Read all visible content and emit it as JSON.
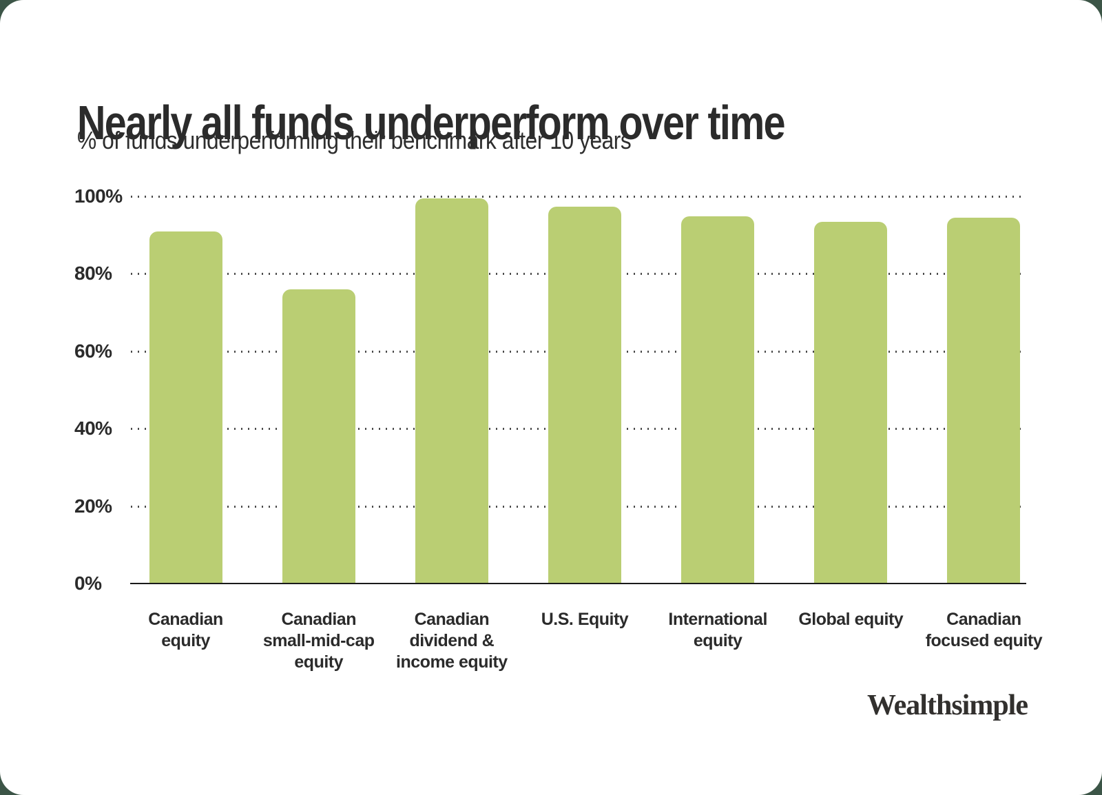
{
  "chart_data": {
    "type": "bar",
    "title": "Nearly all funds underperform over time",
    "subtitle": "% of funds underperforming their benchmark after 10 years",
    "categories": [
      "Canadian\nequity",
      "Canadian\nsmall-mid-cap\nequity",
      "Canadian\ndividend &\nincome equity",
      "U.S. Equity",
      "International\nequity",
      "Global equity",
      "Canadian\nfocused equity"
    ],
    "values": [
      91,
      76,
      99.5,
      97.3,
      94.8,
      93.5,
      94.5
    ],
    "xlabel": "",
    "ylabel": "",
    "ylim": [
      0,
      100
    ],
    "y_ticks": [
      {
        "label": "100%",
        "value": 100
      },
      {
        "label": "80%",
        "value": 80
      },
      {
        "label": "60%",
        "value": 60
      },
      {
        "label": "40%",
        "value": 40
      },
      {
        "label": "20%",
        "value": 20
      },
      {
        "label": "0%",
        "value": 0
      }
    ],
    "grid": "horizontal-dotted",
    "legend": "none",
    "bar_color": "#bace73"
  },
  "footer": {
    "logo_text": "Wealthsimple"
  },
  "colors": {
    "bar": "#bace73",
    "text": "#2b2b2b",
    "gridline_dots": "#4a4a4a",
    "axis_line": "#1a1a1a",
    "card_background": "#ffffff",
    "page_background": "#3c5547"
  }
}
